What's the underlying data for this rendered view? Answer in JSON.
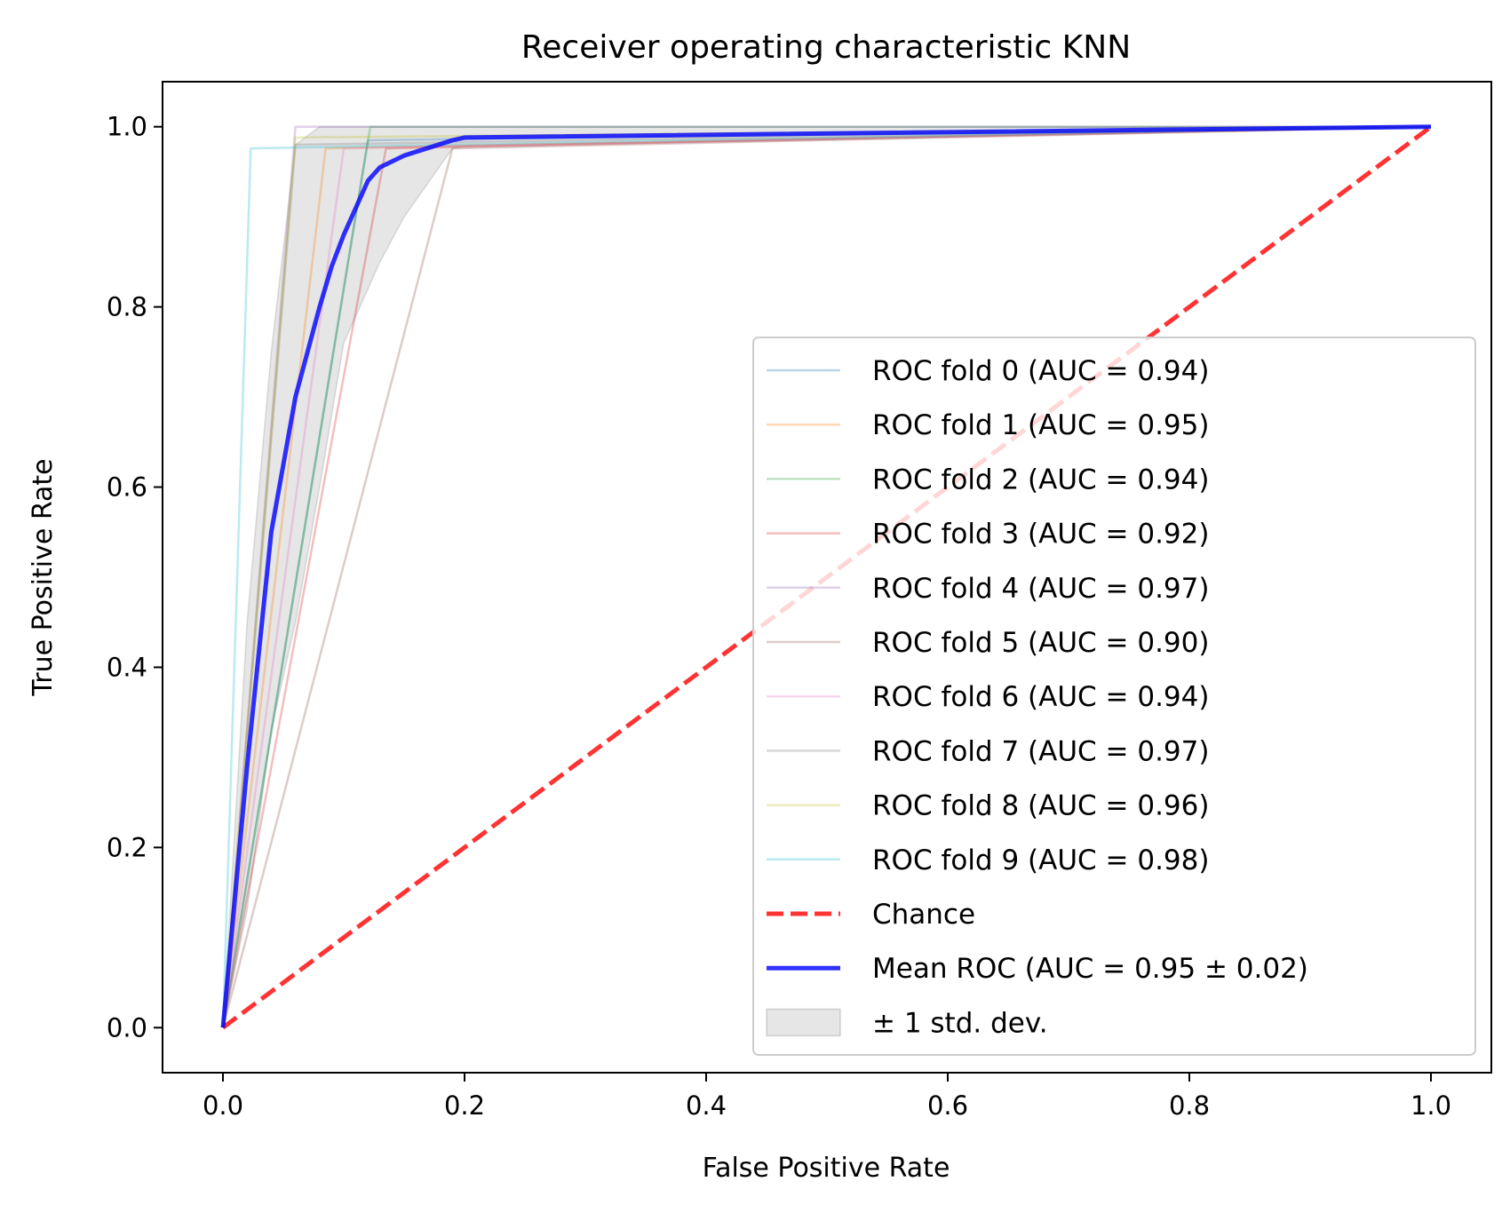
{
  "chart_data": {
    "type": "line",
    "title": "Receiver operating characteristic KNN",
    "xlabel": "False Positive Rate",
    "ylabel": "True Positive Rate",
    "xlim": [
      -0.05,
      1.05
    ],
    "ylim": [
      -0.05,
      1.05
    ],
    "xticks": [
      0.0,
      0.2,
      0.4,
      0.6,
      0.8,
      1.0
    ],
    "yticks": [
      0.0,
      0.2,
      0.4,
      0.6,
      0.8,
      1.0
    ],
    "tick_labels_x": [
      "0.0",
      "0.2",
      "0.4",
      "0.6",
      "0.8",
      "1.0"
    ],
    "tick_labels_y": [
      "0.0",
      "0.2",
      "0.4",
      "0.6",
      "0.8",
      "1.0"
    ],
    "grid": false,
    "legend_position": "lower-right",
    "series": [
      {
        "name": "ROC fold 0 (AUC = 0.94)",
        "color": "#1f77b4",
        "x": [
          0,
          0.12,
          1
        ],
        "y": [
          0,
          0.985,
          1
        ]
      },
      {
        "name": "ROC fold 1 (AUC = 0.95)",
        "color": "#ff7f0e",
        "x": [
          0,
          0.085,
          1
        ],
        "y": [
          0,
          0.976,
          1
        ]
      },
      {
        "name": "ROC fold 2 (AUC = 0.94)",
        "color": "#2ca02c",
        "x": [
          0,
          0.122,
          1
        ],
        "y": [
          0,
          1.0,
          1
        ]
      },
      {
        "name": "ROC fold 3 (AUC = 0.92)",
        "color": "#d62728",
        "x": [
          0,
          0.135,
          1
        ],
        "y": [
          0,
          0.976,
          1
        ]
      },
      {
        "name": "ROC fold 4 (AUC = 0.97)",
        "color": "#9467bd",
        "x": [
          0,
          0.06,
          1
        ],
        "y": [
          0,
          1.0,
          1
        ]
      },
      {
        "name": "ROC fold 5 (AUC = 0.90)",
        "color": "#8c564b",
        "x": [
          0,
          0.19,
          1
        ],
        "y": [
          0,
          0.976,
          1
        ]
      },
      {
        "name": "ROC fold 6 (AUC = 0.94)",
        "color": "#e377c2",
        "x": [
          0,
          0.1,
          1
        ],
        "y": [
          0,
          0.976,
          1
        ]
      },
      {
        "name": "ROC fold 7 (AUC = 0.97)",
        "color": "#7f7f7f",
        "x": [
          0,
          0.06,
          1
        ],
        "y": [
          0,
          0.98,
          1
        ]
      },
      {
        "name": "ROC fold 8 (AUC = 0.96)",
        "color": "#bcbd22",
        "x": [
          0,
          0.06,
          1
        ],
        "y": [
          0,
          0.988,
          1
        ]
      },
      {
        "name": "ROC fold 9 (AUC = 0.98)",
        "color": "#17becf",
        "x": [
          0,
          0.023,
          1
        ],
        "y": [
          0,
          0.976,
          1
        ]
      },
      {
        "name": "Chance",
        "color": "#ff0000",
        "x": [
          0,
          1
        ],
        "y": [
          0,
          1
        ]
      },
      {
        "name": "Mean ROC (AUC = 0.95 ± 0.02)",
        "color": "#0000ff",
        "x": [
          0,
          0.02,
          0.04,
          0.06,
          0.08,
          0.09,
          0.1,
          0.12,
          0.13,
          0.15,
          0.19,
          0.2,
          1.0
        ],
        "y": [
          0,
          0.29,
          0.55,
          0.7,
          0.8,
          0.845,
          0.88,
          0.94,
          0.955,
          0.968,
          0.985,
          0.988,
          1.0
        ]
      }
    ],
    "band": {
      "name": "± 1 std. dev.",
      "color": "#808080",
      "x": [
        0,
        0.02,
        0.04,
        0.06,
        0.08,
        0.1,
        0.12,
        0.13,
        0.15,
        0.19,
        0.2,
        1.0
      ],
      "upper": [
        0,
        0.45,
        0.75,
        0.98,
        1.0,
        1.0,
        1.0,
        1.0,
        1.0,
        1.0,
        1.0,
        1.0
      ],
      "lower": [
        0,
        0.13,
        0.33,
        0.45,
        0.6,
        0.76,
        0.82,
        0.85,
        0.9,
        0.976,
        0.978,
        1.0
      ]
    }
  }
}
